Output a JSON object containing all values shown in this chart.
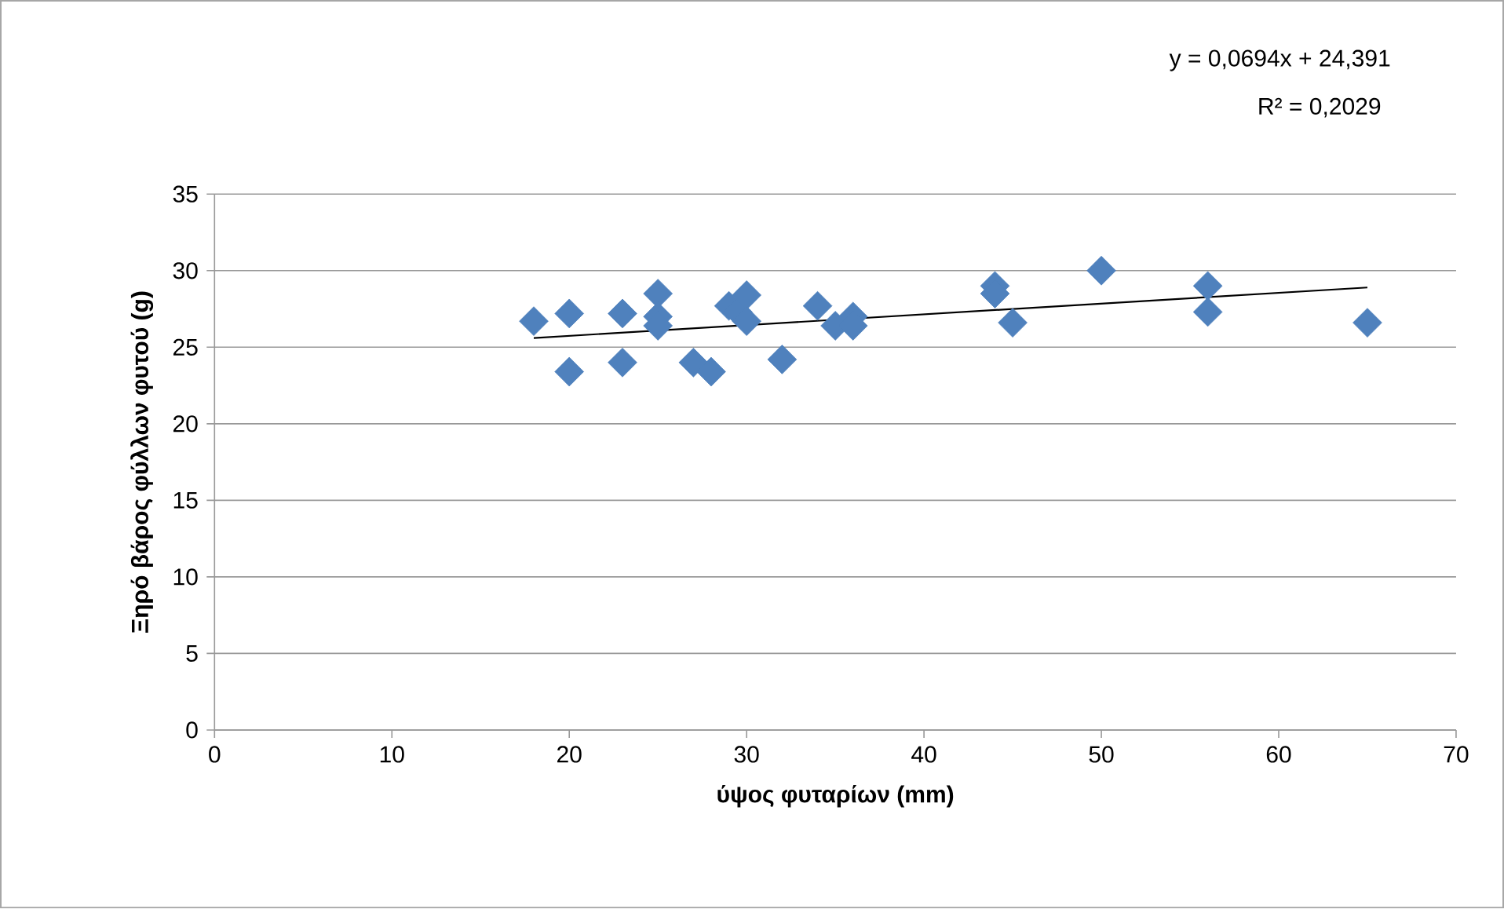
{
  "chart_data": {
    "type": "scatter",
    "xlabel": "ύψος φυταρίων (mm)",
    "ylabel": "Ξηρό  βάρος φύλλων φυτού (g)",
    "annotations": [
      "y = 0,0694x + 24,391",
      "R² = 0,2029"
    ],
    "xlim": [
      0,
      70
    ],
    "xticks": [
      0,
      10,
      20,
      30,
      40,
      50,
      60,
      70
    ],
    "ylim": [
      0,
      35
    ],
    "yticks": [
      0,
      5,
      10,
      15,
      20,
      25,
      30,
      35
    ],
    "grid": "y",
    "series": [
      {
        "color": "#4f81bd",
        "marker": "diamond",
        "x": [
          18,
          20,
          20,
          23,
          23,
          25,
          25,
          25,
          27,
          28,
          29,
          29.5,
          30,
          30,
          32,
          34,
          35,
          36,
          36,
          44,
          44,
          45,
          50,
          56,
          56,
          65
        ],
        "values": [
          26.7,
          27.2,
          23.4,
          27.2,
          24.0,
          28.5,
          27.0,
          26.4,
          24.0,
          23.4,
          27.7,
          27.3,
          28.4,
          26.7,
          24.2,
          27.7,
          26.4,
          27.0,
          26.4,
          29.0,
          28.5,
          26.6,
          30.0,
          29.0,
          27.3,
          26.6
        ]
      },
      {
        "type": "line",
        "color": "#000000",
        "marker": "none",
        "line_style": "solid",
        "x": [
          18,
          65
        ],
        "values": [
          25.6,
          28.9
        ]
      }
    ]
  }
}
